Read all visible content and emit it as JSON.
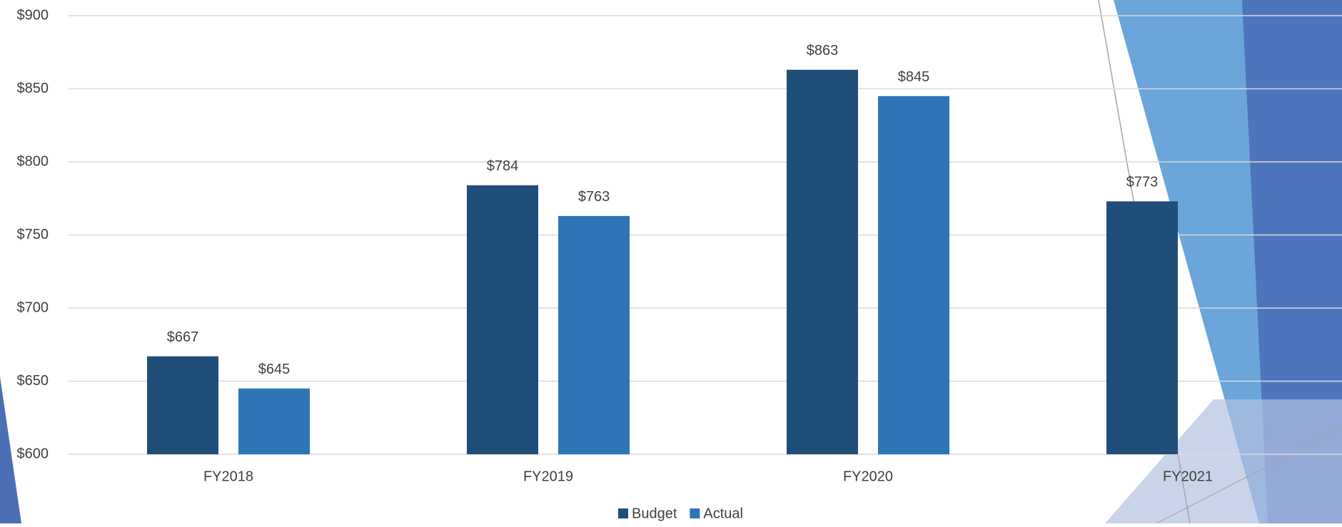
{
  "chart_data": {
    "type": "bar",
    "categories": [
      "FY2018",
      "FY2019",
      "FY2020",
      "FY2021"
    ],
    "series": [
      {
        "name": "Budget",
        "color": "#1f4e79",
        "values": [
          667,
          784,
          863,
          773
        ],
        "value_labels": [
          "$667",
          "$784",
          "$863",
          "$773"
        ]
      },
      {
        "name": "Actual",
        "color": "#2e75b6",
        "values": [
          645,
          763,
          845,
          null
        ],
        "value_labels": [
          "$645",
          "$763",
          "$845",
          null
        ]
      }
    ],
    "ylim": [
      600,
      900
    ],
    "yticks": [
      {
        "value": 600,
        "label": "$600"
      },
      {
        "value": 650,
        "label": "$650"
      },
      {
        "value": 700,
        "label": "$700"
      },
      {
        "value": 750,
        "label": "$750"
      },
      {
        "value": 800,
        "label": "$800"
      },
      {
        "value": 850,
        "label": "$850"
      },
      {
        "value": 900,
        "label": "$900"
      }
    ],
    "grid": true,
    "legend": "bottom"
  }
}
